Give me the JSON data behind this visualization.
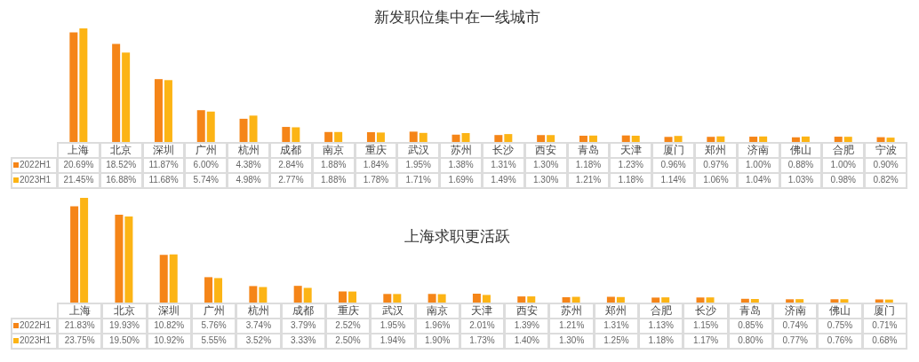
{
  "chart_data": [
    {
      "type": "bar",
      "title": "新发职位集中在一线城市",
      "categories": [
        "上海",
        "北京",
        "深圳",
        "广州",
        "杭州",
        "成都",
        "南京",
        "重庆",
        "武汉",
        "苏州",
        "长沙",
        "西安",
        "青岛",
        "天津",
        "厦门",
        "郑州",
        "济南",
        "佛山",
        "合肥",
        "宁波"
      ],
      "series": [
        {
          "name": "2022H1",
          "color": "#f58518",
          "values": [
            20.69,
            18.52,
            11.87,
            6.0,
            4.38,
            2.84,
            1.88,
            1.84,
            1.95,
            1.38,
            1.31,
            1.3,
            1.18,
            1.23,
            0.96,
            0.97,
            1.0,
            0.88,
            1.0,
            0.9
          ],
          "value_labels": [
            "20.69%",
            "18.52%",
            "11.87%",
            "6.00%",
            "4.38%",
            "2.84%",
            "1.88%",
            "1.84%",
            "1.95%",
            "1.38%",
            "1.31%",
            "1.30%",
            "1.18%",
            "1.23%",
            "0.96%",
            "0.97%",
            "1.00%",
            "0.88%",
            "1.00%",
            "0.90%"
          ]
        },
        {
          "name": "2023H1",
          "color": "#fcb415",
          "values": [
            21.45,
            16.88,
            11.68,
            5.74,
            4.98,
            2.77,
            1.88,
            1.78,
            1.71,
            1.69,
            1.49,
            1.3,
            1.21,
            1.18,
            1.14,
            1.06,
            1.04,
            1.03,
            0.98,
            0.82
          ],
          "value_labels": [
            "21.45%",
            "16.88%",
            "11.68%",
            "5.74%",
            "4.98%",
            "2.77%",
            "1.88%",
            "1.78%",
            "1.71%",
            "1.69%",
            "1.49%",
            "1.30%",
            "1.21%",
            "1.18%",
            "1.14%",
            "1.06%",
            "1.04%",
            "1.03%",
            "0.98%",
            "0.82%"
          ]
        }
      ],
      "legend": "bottom left"
    },
    {
      "type": "bar",
      "title": "上海求职更活跃",
      "categories": [
        "上海",
        "北京",
        "深圳",
        "广州",
        "杭州",
        "成都",
        "重庆",
        "武汉",
        "南京",
        "天津",
        "西安",
        "苏州",
        "郑州",
        "合肥",
        "长沙",
        "青岛",
        "济南",
        "佛山",
        "厦门"
      ],
      "series": [
        {
          "name": "2022H1",
          "color": "#f58518",
          "values": [
            21.83,
            19.93,
            10.82,
            5.76,
            3.74,
            3.79,
            2.52,
            1.95,
            1.96,
            2.01,
            1.39,
            1.21,
            1.31,
            1.13,
            1.15,
            0.85,
            0.74,
            0.75,
            0.71
          ],
          "value_labels": [
            "21.83%",
            "19.93%",
            "10.82%",
            "5.76%",
            "3.74%",
            "3.79%",
            "2.52%",
            "1.95%",
            "1.96%",
            "2.01%",
            "1.39%",
            "1.21%",
            "1.31%",
            "1.13%",
            "1.15%",
            "0.85%",
            "0.74%",
            "0.75%",
            "0.71%"
          ]
        },
        {
          "name": "2023H1",
          "color": "#fcb415",
          "values": [
            23.75,
            19.5,
            10.92,
            5.55,
            3.52,
            3.33,
            2.5,
            1.94,
            1.9,
            1.73,
            1.4,
            1.3,
            1.25,
            1.18,
            1.17,
            0.8,
            0.77,
            0.76,
            0.68
          ],
          "value_labels": [
            "23.75%",
            "19.50%",
            "10.92%",
            "5.55%",
            "3.52%",
            "3.33%",
            "2.50%",
            "1.94%",
            "1.90%",
            "1.73%",
            "1.40%",
            "1.30%",
            "1.25%",
            "1.18%",
            "1.17%",
            "0.80%",
            "0.77%",
            "0.76%",
            "0.68%"
          ]
        }
      ],
      "legend": "bottom left"
    }
  ]
}
